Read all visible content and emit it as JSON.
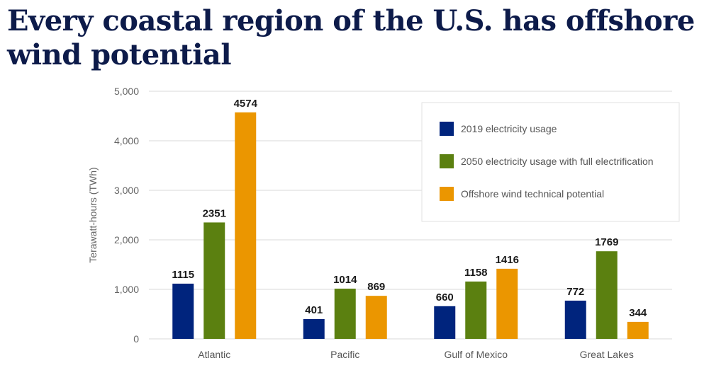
{
  "chart_data": {
    "type": "bar",
    "title": "Every coastal region of the U.S. has offshore wind potential",
    "xlabel": "",
    "ylabel": "Terawatt-hours (TWh)",
    "ylim": [
      0,
      5000
    ],
    "yticks": [
      0,
      1000,
      2000,
      3000,
      4000,
      5000
    ],
    "ytick_labels": [
      "0",
      "1,000",
      "2,000",
      "3,000",
      "4,000",
      "5,000"
    ],
    "grid": true,
    "legend_position": "top-right",
    "categories": [
      "Atlantic",
      "Pacific",
      "Gulf of Mexico",
      "Great Lakes"
    ],
    "series": [
      {
        "name": "2019 electricity usage",
        "color": "#00247d",
        "values": [
          1115,
          401,
          660,
          772
        ]
      },
      {
        "name": "2050 electricity usage with full electrification",
        "color": "#5b8010",
        "values": [
          2351,
          1014,
          1158,
          1769
        ]
      },
      {
        "name": "Offshore wind technical potential",
        "color": "#eb9600",
        "values": [
          4574,
          869,
          1416,
          344
        ]
      }
    ]
  }
}
